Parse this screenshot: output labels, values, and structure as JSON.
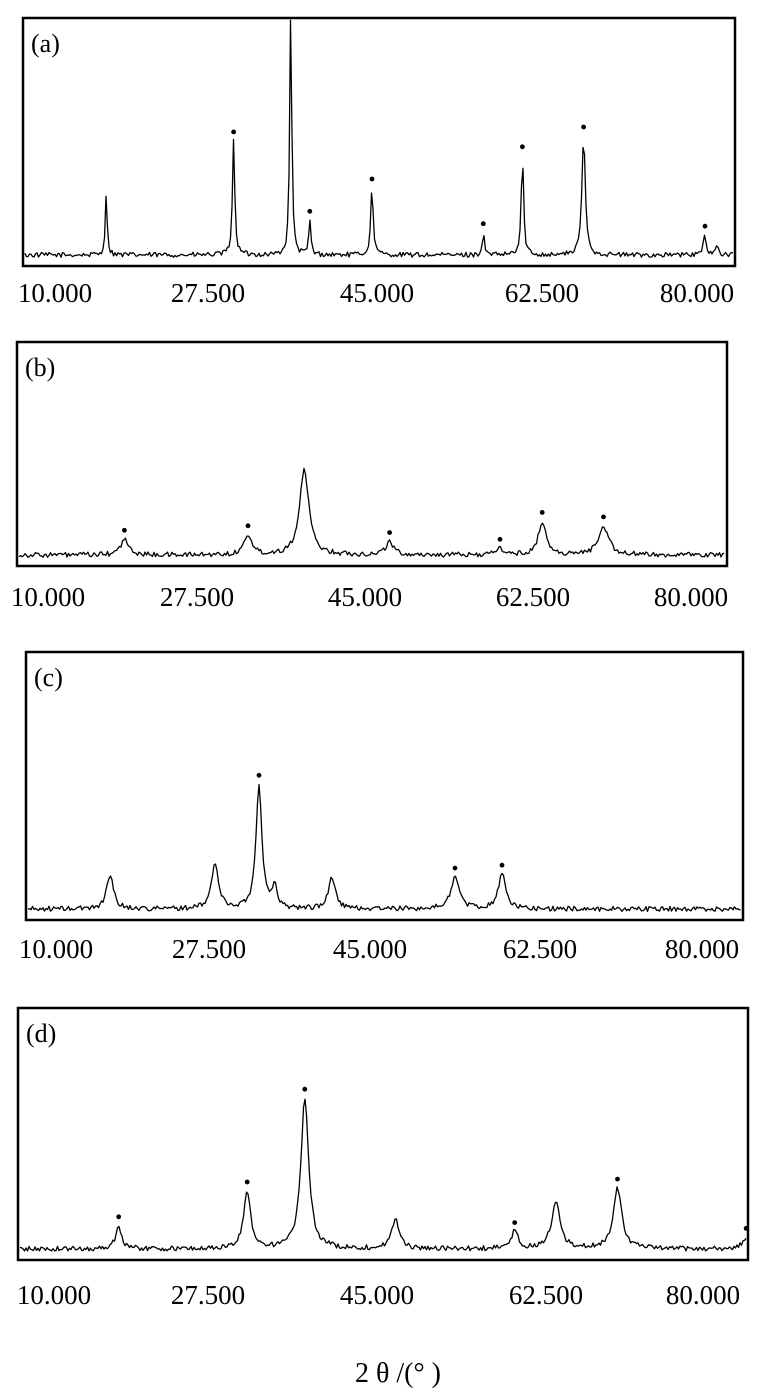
{
  "chart_data": [
    {
      "type": "line",
      "panel_label": "(a)",
      "x_ticks": [
        "10.000",
        "27.500",
        "45.000",
        "62.500",
        "80.000"
      ],
      "xlim": [
        10,
        80
      ],
      "peaks": [
        {
          "x": 19.0,
          "y": 0.24,
          "w": 0.12,
          "marked": false
        },
        {
          "x": 31.7,
          "y": 0.46,
          "w": 0.14,
          "marked": true
        },
        {
          "x": 37.4,
          "y": 1.0,
          "w": 0.12,
          "marked": false
        },
        {
          "x": 39.3,
          "y": 0.14,
          "w": 0.12,
          "marked": true
        },
        {
          "x": 45.5,
          "y": 0.27,
          "w": 0.15,
          "marked": true
        },
        {
          "x": 56.6,
          "y": 0.09,
          "w": 0.12,
          "marked": true
        },
        {
          "x": 60.5,
          "y": 0.4,
          "w": 0.14,
          "marked": true
        },
        {
          "x": 66.6,
          "y": 0.48,
          "w": 0.2,
          "marked": true
        },
        {
          "x": 78.7,
          "y": 0.08,
          "w": 0.18,
          "marked": true
        },
        {
          "x": 79.9,
          "y": 0.05,
          "w": 0.12,
          "marked": false
        }
      ]
    },
    {
      "type": "line",
      "panel_label": "(b)",
      "x_ticks": [
        "10.000",
        "27.500",
        "45.000",
        "62.500",
        "80.000"
      ],
      "xlim": [
        10,
        80
      ],
      "peaks": [
        {
          "x": 20.3,
          "y": 0.07,
          "w": 0.45,
          "marked": true
        },
        {
          "x": 32.6,
          "y": 0.09,
          "w": 0.45,
          "marked": true
        },
        {
          "x": 38.2,
          "y": 0.38,
          "w": 0.55,
          "marked": false
        },
        {
          "x": 46.7,
          "y": 0.06,
          "w": 0.45,
          "marked": true
        },
        {
          "x": 57.7,
          "y": 0.03,
          "w": 0.4,
          "marked": true
        },
        {
          "x": 61.9,
          "y": 0.15,
          "w": 0.45,
          "marked": true
        },
        {
          "x": 68.0,
          "y": 0.13,
          "w": 0.6,
          "marked": true
        }
      ]
    },
    {
      "type": "line",
      "panel_label": "(c)",
      "x_ticks": [
        "10.000",
        "27.500",
        "45.000",
        "62.500",
        "80.000"
      ],
      "xlim": [
        10,
        80
      ],
      "peaks": [
        {
          "x": 17.8,
          "y": 0.12,
          "w": 0.4,
          "marked": false
        },
        {
          "x": 28.3,
          "y": 0.16,
          "w": 0.4,
          "marked": false
        },
        {
          "x": 32.7,
          "y": 0.43,
          "w": 0.35,
          "marked": true
        },
        {
          "x": 34.3,
          "y": 0.07,
          "w": 0.3,
          "marked": false
        },
        {
          "x": 40.0,
          "y": 0.11,
          "w": 0.4,
          "marked": false
        },
        {
          "x": 52.3,
          "y": 0.11,
          "w": 0.5,
          "marked": true
        },
        {
          "x": 57.0,
          "y": 0.12,
          "w": 0.45,
          "marked": true
        }
      ]
    },
    {
      "type": "line",
      "panel_label": "(d)",
      "x_ticks": [
        "10.000",
        "27.500",
        "45.000",
        "62.500",
        "80.000"
      ],
      "xlim": [
        10,
        80
      ],
      "peaks": [
        {
          "x": 19.3,
          "y": 0.08,
          "w": 0.35,
          "marked": true
        },
        {
          "x": 31.8,
          "y": 0.2,
          "w": 0.4,
          "marked": true
        },
        {
          "x": 37.4,
          "y": 0.52,
          "w": 0.45,
          "marked": true
        },
        {
          "x": 46.2,
          "y": 0.1,
          "w": 0.45,
          "marked": false
        },
        {
          "x": 57.8,
          "y": 0.06,
          "w": 0.4,
          "marked": true
        },
        {
          "x": 61.8,
          "y": 0.16,
          "w": 0.5,
          "marked": false
        },
        {
          "x": 67.8,
          "y": 0.21,
          "w": 0.5,
          "marked": true
        },
        {
          "x": 80.3,
          "y": 0.04,
          "w": 0.4,
          "marked": true
        }
      ]
    }
  ],
  "xlabel": "2 θ /(° )"
}
